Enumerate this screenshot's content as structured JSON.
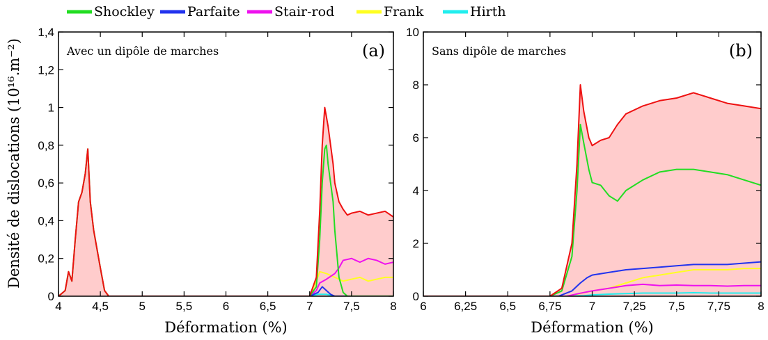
{
  "legend": [
    {
      "name": "Shockley",
      "color": "#22dd22"
    },
    {
      "name": "Parfaite",
      "color": "#2233ee"
    },
    {
      "name": "Stair-rod",
      "color": "#ee11ee"
    },
    {
      "name": "Frank",
      "color": "#ffff22"
    },
    {
      "name": "Hirth",
      "color": "#22eeee"
    }
  ],
  "ylabel": "Densité de dislocations (10¹⁶.m⁻²)",
  "total_color": "#ee1111",
  "fill_color": "#ffcccc",
  "chart_data": [
    {
      "type": "line",
      "panel": "(a)",
      "annotation": "Avec un dipôle de marches",
      "xlabel": "Déformation (%)",
      "xlim": [
        4,
        8
      ],
      "ylim": [
        0,
        1.4
      ],
      "xticks": [
        4,
        4.5,
        5,
        5.5,
        6,
        6.5,
        7,
        7.5,
        8
      ],
      "xtick_labels": [
        "4",
        "4,5",
        "5",
        "5,5",
        "6",
        "6,5",
        "7",
        "7,5",
        "8"
      ],
      "yticks": [
        0,
        0.2,
        0.4,
        0.6,
        0.8,
        1,
        1.2,
        1.4
      ],
      "ytick_labels": [
        "0",
        "0,2",
        "0,4",
        "0,6",
        "0,8",
        "1",
        "1,2",
        "1,4"
      ],
      "series": [
        {
          "name": "Total",
          "x": [
            4.0,
            4.08,
            4.12,
            4.16,
            4.2,
            4.24,
            4.28,
            4.32,
            4.35,
            4.38,
            4.42,
            4.46,
            4.5,
            4.55,
            4.6,
            7.0,
            7.08,
            7.12,
            7.15,
            7.18,
            7.2,
            7.22,
            7.25,
            7.28,
            7.3,
            7.35,
            7.4,
            7.45,
            7.5,
            7.6,
            7.7,
            7.8,
            7.9,
            8.0
          ],
          "y": [
            0,
            0.03,
            0.13,
            0.08,
            0.3,
            0.5,
            0.55,
            0.65,
            0.78,
            0.5,
            0.35,
            0.25,
            0.15,
            0.03,
            0,
            0,
            0.1,
            0.45,
            0.8,
            1.0,
            0.95,
            0.9,
            0.8,
            0.7,
            0.6,
            0.5,
            0.46,
            0.43,
            0.44,
            0.45,
            0.43,
            0.44,
            0.45,
            0.42
          ]
        },
        {
          "name": "Shockley",
          "x": [
            4.0,
            4.08,
            4.12,
            4.16,
            4.2,
            4.24,
            4.28,
            4.32,
            4.35,
            4.38,
            4.42,
            4.46,
            4.5,
            4.55,
            4.6,
            7.0,
            7.08,
            7.12,
            7.15,
            7.18,
            7.2,
            7.22,
            7.25,
            7.28,
            7.3,
            7.35,
            7.4,
            7.45,
            7.5,
            7.6,
            7.7,
            7.8,
            7.9,
            8.0
          ],
          "y": [
            0,
            0.03,
            0.13,
            0.08,
            0.3,
            0.5,
            0.55,
            0.65,
            0.78,
            0.5,
            0.35,
            0.25,
            0.15,
            0.03,
            0,
            0,
            0.05,
            0.3,
            0.6,
            0.78,
            0.8,
            0.7,
            0.6,
            0.5,
            0.35,
            0.1,
            0.02,
            0,
            0,
            0,
            0,
            0,
            0,
            0
          ]
        },
        {
          "name": "Parfaite",
          "x": [
            7.0,
            7.1,
            7.15,
            7.2,
            7.25,
            7.3,
            7.4,
            8.0
          ],
          "y": [
            0,
            0.02,
            0.05,
            0.03,
            0.01,
            0,
            0,
            0
          ]
        },
        {
          "name": "Stair-rod",
          "x": [
            7.0,
            7.08,
            7.12,
            7.2,
            7.3,
            7.35,
            7.4,
            7.5,
            7.6,
            7.7,
            7.8,
            7.9,
            8.0
          ],
          "y": [
            0,
            0.03,
            0.07,
            0.09,
            0.12,
            0.15,
            0.19,
            0.2,
            0.18,
            0.2,
            0.19,
            0.17,
            0.18
          ]
        },
        {
          "name": "Frank",
          "x": [
            7.0,
            7.08,
            7.12,
            7.2,
            7.3,
            7.4,
            7.5,
            7.6,
            7.7,
            7.8,
            7.9,
            8.0
          ],
          "y": [
            0,
            0.08,
            0.13,
            0.12,
            0.1,
            0.08,
            0.09,
            0.1,
            0.08,
            0.09,
            0.1,
            0.1
          ]
        },
        {
          "name": "Hirth",
          "x": [
            7.0,
            7.1,
            7.2,
            7.3,
            8.0
          ],
          "y": [
            0,
            0.01,
            0.01,
            0,
            0
          ]
        }
      ]
    },
    {
      "type": "line",
      "panel": "(b)",
      "annotation": "Sans dipôle de marches",
      "xlabel": "Déformation (%)",
      "xlim": [
        6,
        8
      ],
      "ylim": [
        0,
        10
      ],
      "xticks": [
        6,
        6.25,
        6.5,
        6.75,
        7,
        7.25,
        7.5,
        7.75,
        8
      ],
      "xtick_labels": [
        "6",
        "6,25",
        "6,5",
        "6,75",
        "7",
        "7,25",
        "7,5",
        "7,75",
        "8"
      ],
      "yticks": [
        0,
        2,
        4,
        6,
        8,
        10
      ],
      "ytick_labels": [
        "0",
        "2",
        "4",
        "6",
        "8",
        "10"
      ],
      "series": [
        {
          "name": "Total",
          "x": [
            6.0,
            6.75,
            6.82,
            6.88,
            6.91,
            6.93,
            6.95,
            6.98,
            7.0,
            7.05,
            7.1,
            7.15,
            7.2,
            7.3,
            7.4,
            7.5,
            7.6,
            7.7,
            7.8,
            7.9,
            8.0
          ],
          "y": [
            0,
            0,
            0.3,
            2.0,
            5.0,
            8.0,
            7.0,
            6.0,
            5.7,
            5.9,
            6.0,
            6.5,
            6.9,
            7.2,
            7.4,
            7.5,
            7.7,
            7.5,
            7.3,
            7.2,
            7.1
          ]
        },
        {
          "name": "Shockley",
          "x": [
            6.0,
            6.75,
            6.82,
            6.88,
            6.91,
            6.93,
            6.95,
            6.98,
            7.0,
            7.05,
            7.1,
            7.15,
            7.2,
            7.3,
            7.4,
            7.5,
            7.6,
            7.7,
            7.8,
            7.9,
            8.0
          ],
          "y": [
            0,
            0,
            0.2,
            1.5,
            4.0,
            6.5,
            5.8,
            4.8,
            4.3,
            4.2,
            3.8,
            3.6,
            4.0,
            4.4,
            4.7,
            4.8,
            4.8,
            4.7,
            4.6,
            4.4,
            4.2
          ]
        },
        {
          "name": "Parfaite",
          "x": [
            6.0,
            6.8,
            6.88,
            6.93,
            6.97,
            7.0,
            7.1,
            7.2,
            7.3,
            7.4,
            7.5,
            7.6,
            7.7,
            7.8,
            7.9,
            8.0
          ],
          "y": [
            0,
            0,
            0.2,
            0.5,
            0.7,
            0.8,
            0.9,
            1.0,
            1.05,
            1.1,
            1.15,
            1.2,
            1.2,
            1.2,
            1.25,
            1.3
          ]
        },
        {
          "name": "Stair-rod",
          "x": [
            6.0,
            6.85,
            6.92,
            7.0,
            7.1,
            7.2,
            7.3,
            7.4,
            7.5,
            7.6,
            7.7,
            7.8,
            7.9,
            8.0
          ],
          "y": [
            0,
            0,
            0.1,
            0.2,
            0.3,
            0.4,
            0.45,
            0.4,
            0.42,
            0.4,
            0.4,
            0.38,
            0.4,
            0.4
          ]
        },
        {
          "name": "Frank",
          "x": [
            6.0,
            6.85,
            6.93,
            7.0,
            7.1,
            7.2,
            7.3,
            7.4,
            7.5,
            7.6,
            7.7,
            7.8,
            7.9,
            8.0
          ],
          "y": [
            0,
            0,
            0.1,
            0.2,
            0.3,
            0.5,
            0.7,
            0.8,
            0.9,
            1.0,
            1.0,
            1.0,
            1.05,
            1.05
          ]
        },
        {
          "name": "Hirth",
          "x": [
            6.0,
            6.85,
            6.95,
            7.0,
            7.1,
            7.2,
            7.3,
            7.4,
            7.5,
            7.6,
            7.7,
            7.8,
            7.9,
            8.0
          ],
          "y": [
            0,
            0,
            0.02,
            0.05,
            0.08,
            0.1,
            0.12,
            0.12,
            0.12,
            0.13,
            0.12,
            0.12,
            0.12,
            0.12
          ]
        }
      ]
    }
  ]
}
